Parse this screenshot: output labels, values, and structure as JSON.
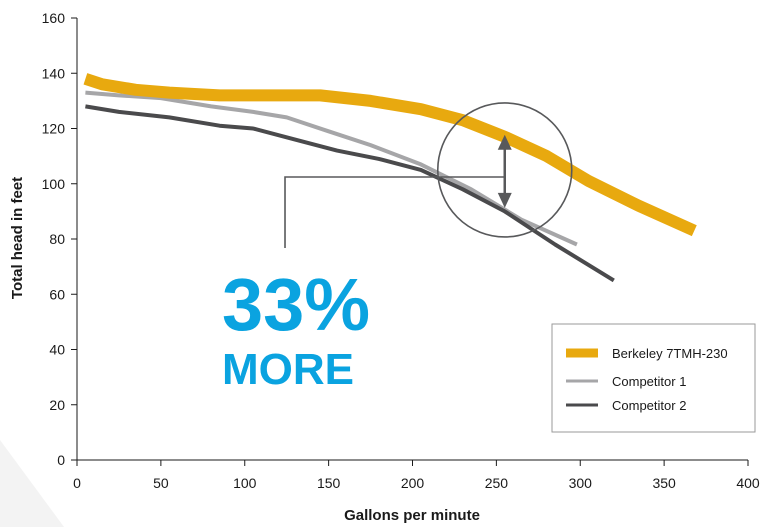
{
  "chart_data": {
    "type": "line",
    "xlabel": "Gallons per minute",
    "ylabel": "Total head in feet",
    "xlim": [
      0,
      400
    ],
    "ylim": [
      0,
      160
    ],
    "x_ticks": [
      0,
      50,
      100,
      150,
      200,
      250,
      300,
      350,
      400
    ],
    "y_ticks": [
      0,
      20,
      40,
      60,
      80,
      100,
      120,
      140,
      160
    ],
    "grid": false,
    "legend_position": "bottom-right",
    "series": [
      {
        "name": "Berkeley 7TMH-230",
        "color": "#E8A90F",
        "points": [
          [
            5,
            138
          ],
          [
            15,
            136
          ],
          [
            35,
            134
          ],
          [
            55,
            133
          ],
          [
            85,
            132
          ],
          [
            115,
            132
          ],
          [
            145,
            132
          ],
          [
            175,
            130
          ],
          [
            205,
            127
          ],
          [
            230,
            123
          ],
          [
            255,
            117
          ],
          [
            280,
            110
          ],
          [
            305,
            101
          ],
          [
            335,
            92
          ],
          [
            368,
            83
          ]
        ]
      },
      {
        "name": "Competitor 1",
        "color": "#A6A6A8",
        "points": [
          [
            5,
            133
          ],
          [
            25,
            132
          ],
          [
            50,
            131
          ],
          [
            80,
            128
          ],
          [
            105,
            126
          ],
          [
            125,
            124
          ],
          [
            150,
            119
          ],
          [
            175,
            114
          ],
          [
            205,
            107
          ],
          [
            235,
            98
          ],
          [
            265,
            87
          ],
          [
            298,
            78
          ]
        ]
      },
      {
        "name": "Competitor 2",
        "color": "#4A4A4C",
        "points": [
          [
            5,
            128
          ],
          [
            25,
            126
          ],
          [
            55,
            124
          ],
          [
            85,
            121
          ],
          [
            105,
            120
          ],
          [
            130,
            116
          ],
          [
            155,
            112
          ],
          [
            180,
            109
          ],
          [
            205,
            105
          ],
          [
            230,
            98
          ],
          [
            255,
            90
          ],
          [
            285,
            78
          ],
          [
            320,
            65
          ]
        ]
      }
    ],
    "annotation": {
      "big_text": "33%",
      "small_text": "MORE",
      "color": "#0AA3E0",
      "circle_center": [
        255,
        105
      ],
      "arrow_top": 117,
      "arrow_bottom": 92
    }
  }
}
